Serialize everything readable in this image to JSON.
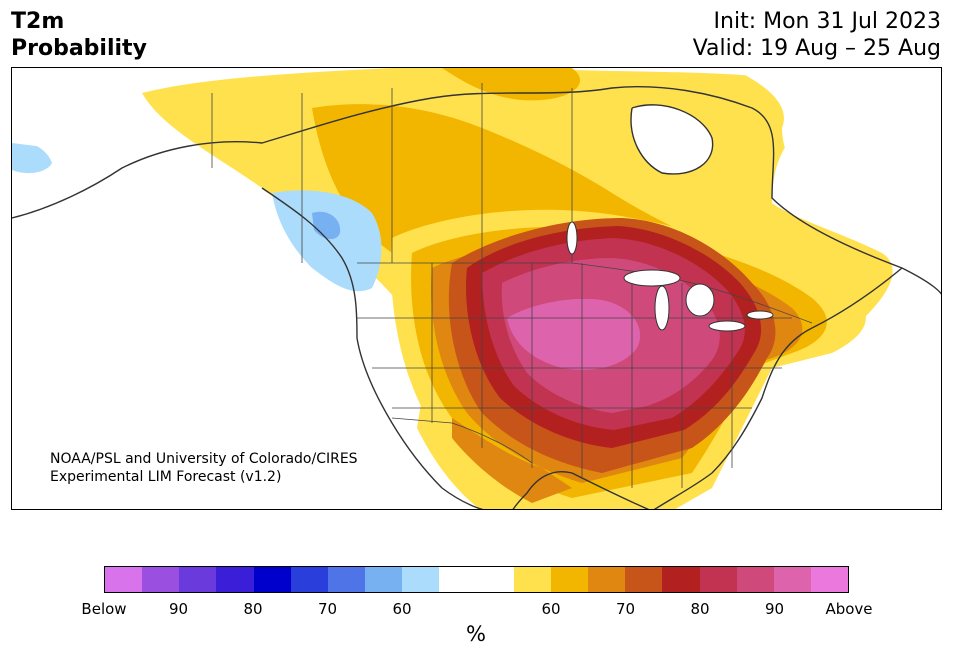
{
  "title": {
    "line1": "T2m",
    "line2": "Probability"
  },
  "dates": {
    "init": "Init: Mon 31 Jul 2023",
    "valid": "Valid: 19 Aug – 25 Aug"
  },
  "credit": {
    "line1": "NOAA/PSL and University of Colorado/CIRES",
    "line2": "Experimental LIM Forecast (v1.2)"
  },
  "colorbar": {
    "colors": [
      "#d873ec",
      "#9b4fe0",
      "#6a3adc",
      "#3b1fd8",
      "#0000cc",
      "#2a3edc",
      "#4f74e8",
      "#78b1f2",
      "#acdcfc",
      "#ffffff",
      "#ffffff",
      "#ffe14e",
      "#f2b600",
      "#df8710",
      "#c75419",
      "#b2201f",
      "#c23251",
      "#cf4a7a",
      "#de63ad",
      "#eb78dc"
    ],
    "labels": [
      "Below",
      "90",
      "80",
      "70",
      "60",
      "60",
      "70",
      "80",
      "90",
      "Above"
    ],
    "unit": "%"
  }
}
